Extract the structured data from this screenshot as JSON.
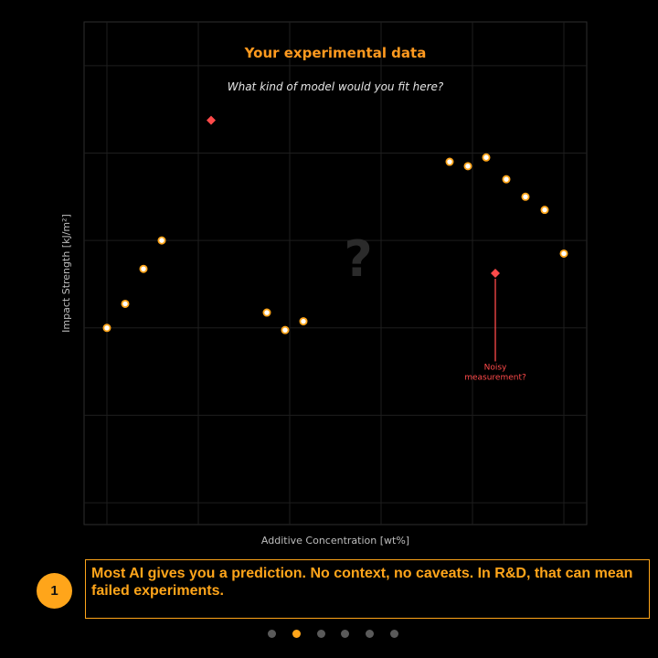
{
  "chart_data": {
    "type": "scatter",
    "title": "Your experimental data",
    "subtitle": "What kind of model would you fit here?",
    "xlabel": "Additive Concentration  [wt%]",
    "ylabel": "Impact Strength  [kJ/m²]",
    "xlim": [
      -1.25,
      26.25
    ],
    "ylim": [
      0,
      11.5
    ],
    "grid": true,
    "center_mark": "?",
    "series": [
      {
        "role": "data",
        "color": "#ffa51a",
        "points": [
          {
            "x": 0,
            "y": 4.5
          },
          {
            "x": 1,
            "y": 5.05
          },
          {
            "x": 2,
            "y": 5.85
          },
          {
            "x": 3,
            "y": 6.5
          },
          {
            "x": 8.75,
            "y": 4.85
          },
          {
            "x": 9.75,
            "y": 4.45
          },
          {
            "x": 10.75,
            "y": 4.65
          },
          {
            "x": 18.75,
            "y": 8.3
          },
          {
            "x": 19.75,
            "y": 8.2
          },
          {
            "x": 20.75,
            "y": 8.4
          },
          {
            "x": 21.85,
            "y": 7.9
          },
          {
            "x": 22.9,
            "y": 7.5
          },
          {
            "x": 23.95,
            "y": 7.2
          },
          {
            "x": 25,
            "y": 6.2
          }
        ]
      },
      {
        "role": "outliers",
        "color": "#ff4a4a",
        "points": [
          {
            "x": 5.7,
            "y": 9.25
          },
          {
            "x": 21.25,
            "y": 5.75
          }
        ]
      }
    ],
    "annotation": {
      "lines": [
        "Noisy",
        "measurement?"
      ],
      "target": {
        "x": 21.25,
        "y": 5.75
      },
      "text_at": {
        "x": 21.25,
        "y": 3.65
      }
    }
  },
  "caption": {
    "step_number": "1",
    "text": "Most AI gives you a prediction. No context, no caveats. In R&D, that can mean failed experiments."
  },
  "pager": {
    "count": 6,
    "active_index": 1
  }
}
